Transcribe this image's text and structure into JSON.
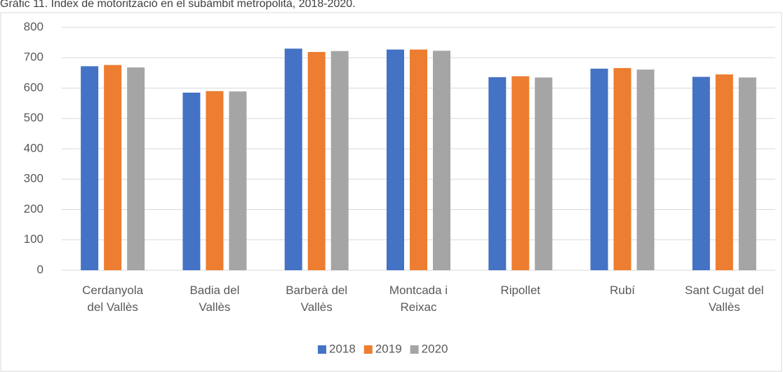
{
  "chart_data": {
    "type": "bar",
    "title": "Gràfic 11. Índex de motorització en el subàmbit metropolità, 2018-2020.",
    "categories": [
      [
        "Cerdanyola",
        "del Vallès"
      ],
      [
        "Badia del",
        "Vallès"
      ],
      [
        "Barberà del",
        "Vallès"
      ],
      [
        "Montcada i",
        "Reixac"
      ],
      [
        "Ripollet"
      ],
      [
        "Rubí"
      ],
      [
        "Sant Cugat del",
        "Vallès"
      ]
    ],
    "series": [
      {
        "name": "2018",
        "color": "#4472c4",
        "values": [
          672,
          585,
          730,
          727,
          636,
          664,
          637
        ]
      },
      {
        "name": "2019",
        "color": "#ed7d31",
        "values": [
          676,
          590,
          719,
          727,
          639,
          666,
          645
        ]
      },
      {
        "name": "2020",
        "color": "#a5a5a5",
        "values": [
          668,
          589,
          722,
          723,
          635,
          661,
          635
        ]
      }
    ],
    "ylim": [
      0,
      800
    ],
    "yticks": [
      0,
      100,
      200,
      300,
      400,
      500,
      600,
      700,
      800
    ],
    "grid": true,
    "legend": "bottom"
  }
}
